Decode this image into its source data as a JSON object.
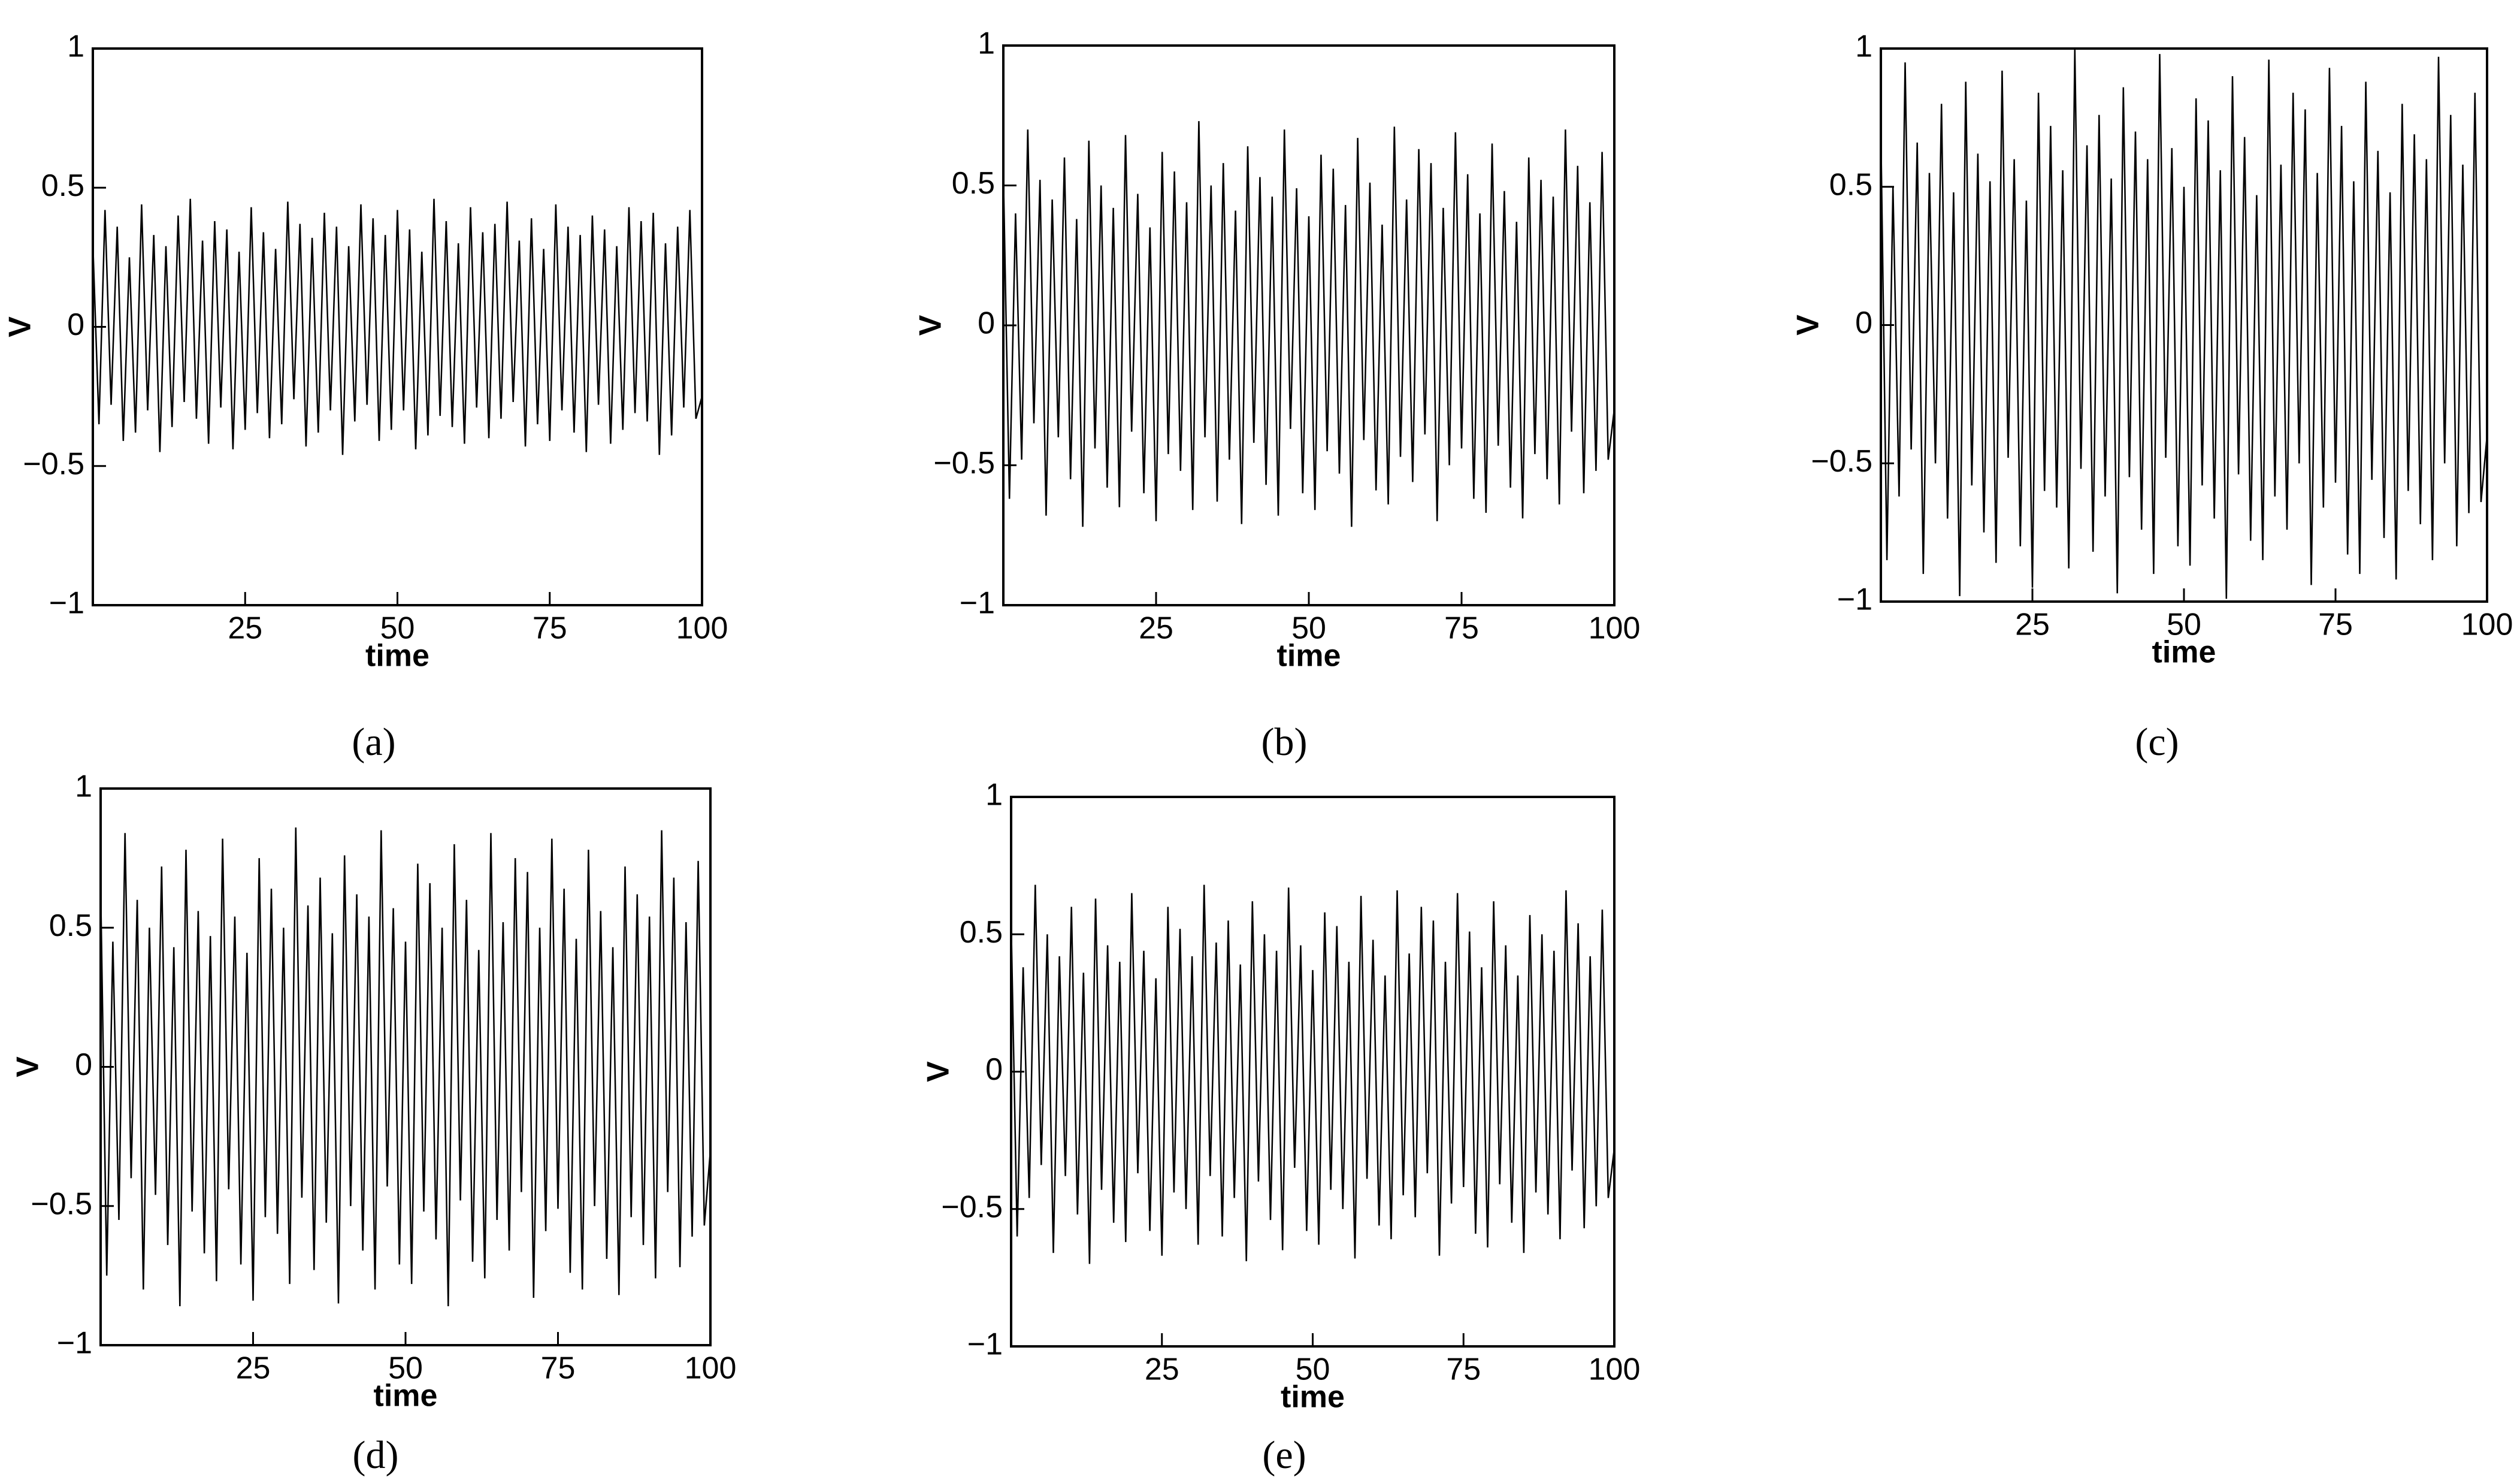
{
  "chart_data": [
    {
      "type": "line",
      "caption": "(a)",
      "xlabel": "time",
      "ylabel": "V",
      "color": "#000000",
      "x": [
        0,
        1,
        2,
        3,
        4,
        5,
        6,
        7,
        8,
        9,
        10,
        11,
        12,
        13,
        14,
        15,
        16,
        17,
        18,
        19,
        20,
        21,
        22,
        23,
        24,
        25,
        26,
        27,
        28,
        29,
        30,
        31,
        32,
        33,
        34,
        35,
        36,
        37,
        38,
        39,
        40,
        41,
        42,
        43,
        44,
        45,
        46,
        47,
        48,
        49,
        50,
        51,
        52,
        53,
        54,
        55,
        56,
        57,
        58,
        59,
        60,
        61,
        62,
        63,
        64,
        65,
        66,
        67,
        68,
        69,
        70,
        71,
        72,
        73,
        74,
        75,
        76,
        77,
        78,
        79,
        80,
        81,
        82,
        83,
        84,
        85,
        86,
        87,
        88,
        89,
        90,
        91,
        92,
        93,
        94,
        95,
        96,
        97,
        98,
        99,
        100
      ],
      "values": [
        0.3,
        -0.35,
        0.42,
        -0.28,
        0.36,
        -0.41,
        0.25,
        -0.38,
        0.44,
        -0.3,
        0.33,
        -0.45,
        0.29,
        -0.36,
        0.4,
        -0.27,
        0.46,
        -0.33,
        0.31,
        -0.42,
        0.38,
        -0.29,
        0.35,
        -0.44,
        0.27,
        -0.37,
        0.43,
        -0.31,
        0.34,
        -0.4,
        0.28,
        -0.35,
        0.45,
        -0.26,
        0.37,
        -0.43,
        0.32,
        -0.38,
        0.41,
        -0.3,
        0.36,
        -0.46,
        0.29,
        -0.34,
        0.44,
        -0.28,
        0.39,
        -0.41,
        0.33,
        -0.37,
        0.42,
        -0.3,
        0.35,
        -0.44,
        0.27,
        -0.39,
        0.46,
        -0.32,
        0.38,
        -0.36,
        0.3,
        -0.42,
        0.43,
        -0.29,
        0.34,
        -0.4,
        0.37,
        -0.33,
        0.45,
        -0.27,
        0.31,
        -0.43,
        0.39,
        -0.35,
        0.28,
        -0.41,
        0.44,
        -0.3,
        0.36,
        -0.38,
        0.33,
        -0.45,
        0.4,
        -0.28,
        0.35,
        -0.42,
        0.29,
        -0.37,
        0.43,
        -0.31,
        0.38,
        -0.34,
        0.41,
        -0.46,
        0.3,
        -0.39,
        0.36,
        -0.29,
        0.42,
        -0.33,
        -0.25
      ],
      "xlim": [
        0,
        100
      ],
      "ylim": [
        -1,
        1
      ],
      "xticks": [
        25,
        50,
        75,
        100
      ],
      "yticks": [
        {
          "value": -1,
          "label": "−1"
        },
        {
          "value": -0.5,
          "label": "−0.5"
        },
        0,
        0.5,
        1
      ]
    },
    {
      "type": "line",
      "caption": "(b)",
      "xlabel": "time",
      "ylabel": "V",
      "color": "#000000",
      "x": [
        0,
        1,
        2,
        3,
        4,
        5,
        6,
        7,
        8,
        9,
        10,
        11,
        12,
        13,
        14,
        15,
        16,
        17,
        18,
        19,
        20,
        21,
        22,
        23,
        24,
        25,
        26,
        27,
        28,
        29,
        30,
        31,
        32,
        33,
        34,
        35,
        36,
        37,
        38,
        39,
        40,
        41,
        42,
        43,
        44,
        45,
        46,
        47,
        48,
        49,
        50,
        51,
        52,
        53,
        54,
        55,
        56,
        57,
        58,
        59,
        60,
        61,
        62,
        63,
        64,
        65,
        66,
        67,
        68,
        69,
        70,
        71,
        72,
        73,
        74,
        75,
        76,
        77,
        78,
        79,
        80,
        81,
        82,
        83,
        84,
        85,
        86,
        87,
        88,
        89,
        90,
        91,
        92,
        93,
        94,
        95,
        96,
        97,
        98,
        99,
        100
      ],
      "values": [
        0.55,
        -0.62,
        0.4,
        -0.48,
        0.7,
        -0.35,
        0.52,
        -0.68,
        0.45,
        -0.4,
        0.6,
        -0.55,
        0.38,
        -0.72,
        0.66,
        -0.44,
        0.5,
        -0.58,
        0.42,
        -0.65,
        0.68,
        -0.38,
        0.47,
        -0.6,
        0.35,
        -0.7,
        0.62,
        -0.46,
        0.55,
        -0.52,
        0.44,
        -0.66,
        0.73,
        -0.4,
        0.5,
        -0.63,
        0.58,
        -0.48,
        0.41,
        -0.71,
        0.64,
        -0.42,
        0.53,
        -0.57,
        0.46,
        -0.68,
        0.7,
        -0.37,
        0.49,
        -0.6,
        0.39,
        -0.66,
        0.61,
        -0.45,
        0.56,
        -0.53,
        0.43,
        -0.72,
        0.67,
        -0.41,
        0.51,
        -0.59,
        0.36,
        -0.64,
        0.71,
        -0.47,
        0.45,
        -0.56,
        0.63,
        -0.39,
        0.58,
        -0.7,
        0.42,
        -0.5,
        0.69,
        -0.44,
        0.54,
        -0.62,
        0.4,
        -0.67,
        0.65,
        -0.43,
        0.48,
        -0.58,
        0.37,
        -0.69,
        0.6,
        -0.46,
        0.52,
        -0.55,
        0.46,
        -0.64,
        0.7,
        -0.38,
        0.57,
        -0.6,
        0.44,
        -0.52,
        0.62,
        -0.48,
        -0.3
      ],
      "xlim": [
        0,
        100
      ],
      "ylim": [
        -1,
        1
      ],
      "xticks": [
        25,
        50,
        75,
        100
      ],
      "yticks": [
        {
          "value": -1,
          "label": "−1"
        },
        {
          "value": -0.5,
          "label": "−0.5"
        },
        0,
        0.5,
        1
      ]
    },
    {
      "type": "line",
      "caption": "(c)",
      "xlabel": "time",
      "ylabel": "V",
      "color": "#000000",
      "x": [
        0,
        1,
        2,
        3,
        4,
        5,
        6,
        7,
        8,
        9,
        10,
        11,
        12,
        13,
        14,
        15,
        16,
        17,
        18,
        19,
        20,
        21,
        22,
        23,
        24,
        25,
        26,
        27,
        28,
        29,
        30,
        31,
        32,
        33,
        34,
        35,
        36,
        37,
        38,
        39,
        40,
        41,
        42,
        43,
        44,
        45,
        46,
        47,
        48,
        49,
        50,
        51,
        52,
        53,
        54,
        55,
        56,
        57,
        58,
        59,
        60,
        61,
        62,
        63,
        64,
        65,
        66,
        67,
        68,
        69,
        70,
        71,
        72,
        73,
        74,
        75,
        76,
        77,
        78,
        79,
        80,
        81,
        82,
        83,
        84,
        85,
        86,
        87,
        88,
        89,
        90,
        91,
        92,
        93,
        94,
        95,
        96,
        97,
        98,
        99,
        100
      ],
      "values": [
        0.7,
        -0.85,
        0.5,
        -0.62,
        0.95,
        -0.45,
        0.66,
        -0.9,
        0.55,
        -0.5,
        0.8,
        -0.7,
        0.48,
        -0.98,
        0.88,
        -0.58,
        0.62,
        -0.75,
        0.52,
        -0.86,
        0.92,
        -0.48,
        0.6,
        -0.8,
        0.45,
        -0.95,
        0.84,
        -0.6,
        0.72,
        -0.66,
        0.56,
        -0.88,
        1,
        -0.52,
        0.65,
        -0.82,
        0.76,
        -0.62,
        0.53,
        -0.97,
        0.86,
        -0.55,
        0.7,
        -0.74,
        0.6,
        -0.9,
        0.98,
        -0.48,
        0.64,
        -0.8,
        0.5,
        -0.87,
        0.82,
        -0.58,
        0.74,
        -0.7,
        0.56,
        -0.99,
        0.9,
        -0.54,
        0.68,
        -0.78,
        0.47,
        -0.85,
        0.96,
        -0.62,
        0.58,
        -0.74,
        0.84,
        -0.5,
        0.78,
        -0.94,
        0.55,
        -0.66,
        0.93,
        -0.57,
        0.72,
        -0.83,
        0.52,
        -0.9,
        0.88,
        -0.56,
        0.63,
        -0.77,
        0.48,
        -0.92,
        0.8,
        -0.6,
        0.69,
        -0.72,
        0.6,
        -0.85,
        0.97,
        -0.5,
        0.76,
        -0.8,
        0.58,
        -0.68,
        0.84,
        -0.64,
        -0.4
      ],
      "xlim": [
        0,
        100
      ],
      "ylim": [
        -1,
        1
      ],
      "xticks": [
        25,
        50,
        75,
        100
      ],
      "yticks": [
        {
          "value": -1,
          "label": "−1"
        },
        {
          "value": -0.5,
          "label": "−0.5"
        },
        0,
        0.5,
        1
      ]
    },
    {
      "type": "line",
      "caption": "(d)",
      "xlabel": "time",
      "ylabel": "V",
      "color": "#000000",
      "x": [
        0,
        1,
        2,
        3,
        4,
        5,
        6,
        7,
        8,
        9,
        10,
        11,
        12,
        13,
        14,
        15,
        16,
        17,
        18,
        19,
        20,
        21,
        22,
        23,
        24,
        25,
        26,
        27,
        28,
        29,
        30,
        31,
        32,
        33,
        34,
        35,
        36,
        37,
        38,
        39,
        40,
        41,
        42,
        43,
        44,
        45,
        46,
        47,
        48,
        49,
        50,
        51,
        52,
        53,
        54,
        55,
        56,
        57,
        58,
        59,
        60,
        61,
        62,
        63,
        64,
        65,
        66,
        67,
        68,
        69,
        70,
        71,
        72,
        73,
        74,
        75,
        76,
        77,
        78,
        79,
        80,
        81,
        82,
        83,
        84,
        85,
        86,
        87,
        88,
        89,
        90,
        91,
        92,
        93,
        94,
        95,
        96,
        97,
        98,
        99,
        100
      ],
      "values": [
        0.65,
        -0.75,
        0.45,
        -0.55,
        0.84,
        -0.4,
        0.6,
        -0.8,
        0.5,
        -0.46,
        0.72,
        -0.64,
        0.43,
        -0.86,
        0.78,
        -0.52,
        0.56,
        -0.67,
        0.47,
        -0.77,
        0.82,
        -0.44,
        0.54,
        -0.71,
        0.41,
        -0.84,
        0.75,
        -0.54,
        0.64,
        -0.6,
        0.5,
        -0.78,
        0.86,
        -0.47,
        0.58,
        -0.73,
        0.68,
        -0.56,
        0.48,
        -0.85,
        0.76,
        -0.5,
        0.62,
        -0.66,
        0.54,
        -0.8,
        0.85,
        -0.43,
        0.57,
        -0.71,
        0.45,
        -0.78,
        0.73,
        -0.52,
        0.66,
        -0.62,
        0.5,
        -0.86,
        0.8,
        -0.48,
        0.6,
        -0.7,
        0.42,
        -0.76,
        0.84,
        -0.55,
        0.52,
        -0.66,
        0.75,
        -0.45,
        0.7,
        -0.83,
        0.5,
        -0.59,
        0.82,
        -0.51,
        0.64,
        -0.74,
        0.46,
        -0.8,
        0.78,
        -0.5,
        0.56,
        -0.69,
        0.43,
        -0.82,
        0.72,
        -0.54,
        0.62,
        -0.64,
        0.54,
        -0.76,
        0.85,
        -0.45,
        0.68,
        -0.72,
        0.52,
        -0.61,
        0.74,
        -0.57,
        -0.3
      ],
      "xlim": [
        0,
        100
      ],
      "ylim": [
        -1,
        1
      ],
      "xticks": [
        25,
        50,
        75,
        100
      ],
      "yticks": [
        {
          "value": -1,
          "label": "−1"
        },
        {
          "value": -0.5,
          "label": "−0.5"
        },
        0,
        0.5,
        1
      ]
    },
    {
      "type": "line",
      "caption": "(e)",
      "xlabel": "time",
      "ylabel": "V",
      "color": "#000000",
      "x": [
        0,
        1,
        2,
        3,
        4,
        5,
        6,
        7,
        8,
        9,
        10,
        11,
        12,
        13,
        14,
        15,
        16,
        17,
        18,
        19,
        20,
        21,
        22,
        23,
        24,
        25,
        26,
        27,
        28,
        29,
        30,
        31,
        32,
        33,
        34,
        35,
        36,
        37,
        38,
        39,
        40,
        41,
        42,
        43,
        44,
        45,
        46,
        47,
        48,
        49,
        50,
        51,
        52,
        53,
        54,
        55,
        56,
        57,
        58,
        59,
        60,
        61,
        62,
        63,
        64,
        65,
        66,
        67,
        68,
        69,
        70,
        71,
        72,
        73,
        74,
        75,
        76,
        77,
        78,
        79,
        80,
        81,
        82,
        83,
        84,
        85,
        86,
        87,
        88,
        89,
        90,
        91,
        92,
        93,
        94,
        95,
        96,
        97,
        98,
        99,
        100
      ],
      "values": [
        0.55,
        -0.6,
        0.38,
        -0.46,
        0.68,
        -0.34,
        0.5,
        -0.66,
        0.42,
        -0.38,
        0.6,
        -0.52,
        0.36,
        -0.7,
        0.63,
        -0.43,
        0.46,
        -0.55,
        0.4,
        -0.62,
        0.65,
        -0.37,
        0.44,
        -0.58,
        0.34,
        -0.67,
        0.6,
        -0.44,
        0.52,
        -0.5,
        0.42,
        -0.63,
        0.68,
        -0.38,
        0.47,
        -0.6,
        0.55,
        -0.46,
        0.39,
        -0.69,
        0.62,
        -0.4,
        0.5,
        -0.54,
        0.44,
        -0.65,
        0.67,
        -0.35,
        0.46,
        -0.58,
        0.37,
        -0.63,
        0.58,
        -0.43,
        0.53,
        -0.5,
        0.4,
        -0.68,
        0.64,
        -0.39,
        0.48,
        -0.56,
        0.35,
        -0.61,
        0.66,
        -0.45,
        0.43,
        -0.53,
        0.6,
        -0.37,
        0.55,
        -0.67,
        0.4,
        -0.48,
        0.65,
        -0.42,
        0.51,
        -0.59,
        0.38,
        -0.64,
        0.62,
        -0.41,
        0.46,
        -0.55,
        0.35,
        -0.66,
        0.57,
        -0.44,
        0.5,
        -0.52,
        0.44,
        -0.61,
        0.66,
        -0.36,
        0.54,
        -0.57,
        0.42,
        -0.49,
        0.59,
        -0.46,
        -0.28
      ],
      "xlim": [
        0,
        100
      ],
      "ylim": [
        -1,
        1
      ],
      "xticks": [
        25,
        50,
        75,
        100
      ],
      "yticks": [
        {
          "value": -1,
          "label": "−1"
        },
        {
          "value": -0.5,
          "label": "−0.5"
        },
        0,
        0.5,
        1
      ]
    }
  ]
}
